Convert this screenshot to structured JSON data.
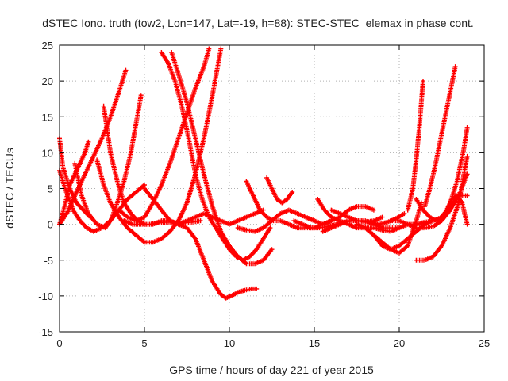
{
  "chart_data": {
    "type": "scatter",
    "title": "dSTEC Iono. truth (tow2, Lon=147, Lat=-19, h=88): STEC-STEC_elemax in phase cont.",
    "xlabel": "GPS time / hours of day 221 of year 2015",
    "ylabel": "dSTEC  / TECUs",
    "xlim": [
      0,
      25
    ],
    "ylim": [
      -15,
      25
    ],
    "xticks": [
      0,
      5,
      10,
      15,
      20,
      25
    ],
    "yticks": [
      -15,
      -10,
      -5,
      0,
      5,
      10,
      15,
      20,
      25
    ],
    "grid": true,
    "marker": "plus",
    "color": "#ff0000",
    "series": [
      {
        "x": [
          0.0,
          0.5,
          1.0,
          1.5,
          2.0,
          2.5,
          3.0,
          3.5,
          3.9
        ],
        "y": [
          0.0,
          1.8,
          4.5,
          7.0,
          9.5,
          12.0,
          15.0,
          18.5,
          21.5
        ]
      },
      {
        "x": [
          0.0,
          0.2,
          0.6,
          1.0,
          1.4,
          1.8
        ],
        "y": [
          12.0,
          8.0,
          5.0,
          3.0,
          2.0,
          1.0
        ]
      },
      {
        "x": [
          0.0,
          0.4,
          0.8,
          1.2,
          1.6,
          2.0,
          2.5,
          3.0,
          3.5,
          4.0,
          4.5,
          5.0
        ],
        "y": [
          7.5,
          4.5,
          2.0,
          0.5,
          -0.5,
          -1.0,
          -0.5,
          0.5,
          2.0,
          3.5,
          4.5,
          5.5
        ]
      },
      {
        "x": [
          0.9,
          1.3,
          1.7,
          2.2,
          2.7,
          3.0,
          3.4,
          3.8,
          4.2,
          4.5,
          4.8
        ],
        "y": [
          8.5,
          4.0,
          1.5,
          0.0,
          -0.5,
          0.5,
          3.0,
          6.0,
          10.0,
          14.0,
          18.0
        ]
      },
      {
        "x": [
          0.0,
          0.3,
          0.6,
          1.0,
          1.5,
          1.7
        ],
        "y": [
          0.0,
          2.5,
          5.5,
          7.5,
          10.0,
          11.5
        ]
      },
      {
        "x": [
          2.6,
          3.0,
          3.4,
          3.8,
          4.2,
          4.6,
          5.0,
          5.5,
          6.0,
          6.5,
          7.0,
          7.5,
          8.0,
          8.5,
          9.0,
          9.5,
          9.8,
          10.1,
          10.5,
          10.9,
          11.3,
          11.6
        ],
        "y": [
          16.5,
          10.0,
          6.0,
          3.0,
          1.5,
          0.5,
          0.0,
          0.0,
          0.5,
          0.5,
          0.0,
          -0.5,
          -2.0,
          -5.0,
          -8.0,
          -9.8,
          -10.3,
          -10.0,
          -9.5,
          -9.2,
          -9.0,
          -9.0
        ]
      },
      {
        "x": [
          2.2,
          2.6,
          3.0,
          3.5,
          4.0,
          4.5,
          5.0,
          5.5,
          6.0,
          6.5,
          7.0,
          7.5,
          8.0,
          8.5,
          9.0,
          9.5
        ],
        "y": [
          9.0,
          5.5,
          3.0,
          1.0,
          -0.5,
          -1.5,
          -2.5,
          -2.5,
          -2.0,
          -1.0,
          0.5,
          3.0,
          7.0,
          12.0,
          18.0,
          24.5
        ]
      },
      {
        "x": [
          3.5,
          4.0,
          4.5,
          5.0,
          5.5,
          6.0,
          6.5,
          7.0,
          7.5,
          8.0,
          8.5,
          8.8
        ],
        "y": [
          2.0,
          1.0,
          0.5,
          1.0,
          3.0,
          5.5,
          8.5,
          12.0,
          15.5,
          19.0,
          22.0,
          24.5
        ]
      },
      {
        "x": [
          6.0,
          6.4,
          6.8,
          7.2,
          7.6,
          8.0,
          8.4,
          8.8,
          9.2,
          9.6,
          10.0,
          10.4,
          10.8,
          11.2,
          11.6,
          12.0,
          12.4
        ],
        "y": [
          24.0,
          22.5,
          20.0,
          16.5,
          12.0,
          7.0,
          3.5,
          1.0,
          -0.5,
          -2.0,
          -3.5,
          -4.5,
          -5.0,
          -4.5,
          -3.5,
          -2.0,
          -0.5
        ]
      },
      {
        "x": [
          6.6,
          7.0,
          7.5,
          8.0,
          8.5,
          9.0,
          9.5,
          10.0,
          10.5,
          11.0,
          11.5,
          12.0,
          12.5
        ],
        "y": [
          24.0,
          21.0,
          17.0,
          12.0,
          7.0,
          2.5,
          -1.0,
          -3.0,
          -4.5,
          -5.5,
          -5.5,
          -5.0,
          -3.5
        ]
      },
      {
        "x": [
          5.0,
          5.5,
          6.0,
          6.5,
          7.0,
          7.5,
          8.0,
          8.5,
          9.0,
          9.5,
          10.0,
          10.5,
          11.0,
          11.5,
          12.0
        ],
        "y": [
          5.0,
          3.5,
          2.0,
          0.5,
          0.0,
          0.5,
          1.0,
          1.5,
          1.0,
          0.5,
          0.0,
          0.5,
          1.0,
          1.5,
          2.0
        ]
      },
      {
        "x": [
          3.8,
          4.3,
          4.8,
          5.3,
          5.8,
          6.3,
          6.8,
          7.3,
          7.8,
          8.3
        ],
        "y": [
          0.5,
          0.0,
          0.0,
          0.0,
          0.2,
          0.3,
          0.3,
          0.2,
          0.3,
          0.5
        ]
      },
      {
        "x": [
          11.0,
          11.4,
          11.8,
          12.2,
          12.6,
          13.0,
          13.5,
          14.0,
          14.5,
          15.0,
          15.5,
          16.0
        ],
        "y": [
          6.0,
          4.0,
          2.0,
          1.0,
          0.5,
          0.5,
          0.0,
          -0.5,
          -0.5,
          -0.5,
          0.0,
          0.5
        ]
      },
      {
        "x": [
          12.2,
          12.5,
          12.8,
          13.1,
          13.4,
          13.7
        ],
        "y": [
          6.5,
          5.0,
          3.5,
          3.0,
          3.5,
          4.5
        ]
      },
      {
        "x": [
          10.5,
          11.0,
          11.5,
          12.0,
          12.5,
          13.0,
          13.5,
          14.0,
          14.5,
          15.0
        ],
        "y": [
          -0.5,
          -0.8,
          -1.0,
          -0.5,
          0.5,
          1.5,
          2.0,
          1.5,
          1.0,
          0.5
        ]
      },
      {
        "x": [
          13.8,
          14.3,
          14.8,
          15.3,
          15.8,
          16.3,
          16.8,
          17.3,
          17.8,
          18.3,
          18.8,
          19.3,
          19.8,
          20.3
        ],
        "y": [
          0.5,
          0.0,
          -0.5,
          -0.5,
          -0.3,
          0.0,
          0.3,
          0.5,
          0.5,
          0.3,
          0.0,
          0.3,
          0.8,
          1.5
        ]
      },
      {
        "x": [
          14.5,
          15.0,
          15.5,
          16.0,
          16.5,
          17.0,
          17.5,
          18.0,
          18.5
        ],
        "y": [
          1.0,
          0.5,
          0.0,
          0.5,
          1.0,
          2.0,
          2.5,
          2.5,
          2.0
        ]
      },
      {
        "x": [
          15.2,
          15.6,
          16.0,
          16.5,
          17.0,
          17.5,
          18.0,
          18.5,
          19.0,
          19.5,
          20.0
        ],
        "y": [
          3.5,
          2.0,
          1.0,
          0.5,
          0.0,
          -0.5,
          -0.5,
          -0.5,
          -0.8,
          -1.0,
          -0.5
        ]
      },
      {
        "x": [
          16.0,
          16.5,
          17.0,
          17.5,
          18.0,
          18.5,
          19.0,
          19.5,
          20.0,
          20.5,
          21.0,
          21.5,
          22.0
        ],
        "y": [
          2.0,
          1.5,
          1.0,
          0.5,
          0.5,
          0.0,
          -0.5,
          -0.5,
          -0.5,
          0.0,
          0.0,
          0.3,
          0.5
        ]
      },
      {
        "x": [
          15.5,
          16.0,
          16.5,
          17.0,
          17.5,
          18.0,
          18.5,
          19.0
        ],
        "y": [
          -1.0,
          -0.5,
          0.0,
          0.5,
          0.5,
          0.3,
          0.5,
          1.0
        ]
      },
      {
        "x": [
          17.5,
          18.0,
          18.5,
          19.0,
          19.5,
          20.0,
          20.5,
          21.0,
          21.3
        ],
        "y": [
          0.0,
          -0.5,
          -1.5,
          -2.5,
          -3.5,
          -4.0,
          -3.0,
          0.5,
          3.0
        ]
      },
      {
        "x": [
          18.0,
          18.5,
          19.0,
          19.5,
          20.0,
          20.5,
          21.0,
          21.5,
          22.0,
          22.5,
          23.0,
          23.5,
          24.0
        ],
        "y": [
          -0.5,
          -1.5,
          -3.0,
          -3.5,
          -3.0,
          -2.0,
          -1.0,
          0.0,
          0.5,
          1.0,
          2.5,
          4.0,
          4.0
        ]
      },
      {
        "x": [
          19.5,
          20.0,
          20.5,
          21.0,
          21.5,
          22.0,
          22.5,
          23.0,
          23.5,
          24.0
        ],
        "y": [
          0.5,
          0.5,
          0.0,
          -0.5,
          -0.5,
          -0.3,
          0.5,
          2.0,
          4.0,
          7.0
        ]
      },
      {
        "x": [
          20.5,
          20.8,
          21.0,
          21.2,
          21.4
        ],
        "y": [
          2.0,
          5.0,
          9.0,
          14.0,
          20.0
        ]
      },
      {
        "x": [
          21.5,
          21.8,
          22.1,
          22.4,
          22.7,
          23.0,
          23.3
        ],
        "y": [
          2.5,
          5.0,
          8.0,
          11.5,
          15.0,
          18.5,
          22.0
        ]
      },
      {
        "x": [
          21.0,
          21.5,
          22.0,
          22.5,
          23.0,
          23.5,
          24.0
        ],
        "y": [
          -5.0,
          -5.0,
          -4.5,
          -3.0,
          -0.5,
          3.0,
          9.5
        ]
      },
      {
        "x": [
          21.0,
          21.4,
          21.8,
          22.2,
          22.6,
          23.0,
          23.4,
          23.8,
          24.0
        ],
        "y": [
          3.5,
          2.0,
          1.0,
          0.5,
          1.0,
          3.0,
          6.0,
          10.5,
          13.5
        ]
      },
      {
        "x": [
          22.5,
          22.8,
          23.1,
          23.4,
          23.7,
          24.0
        ],
        "y": [
          1.0,
          2.0,
          3.5,
          4.0,
          3.0,
          0.0
        ]
      }
    ]
  }
}
